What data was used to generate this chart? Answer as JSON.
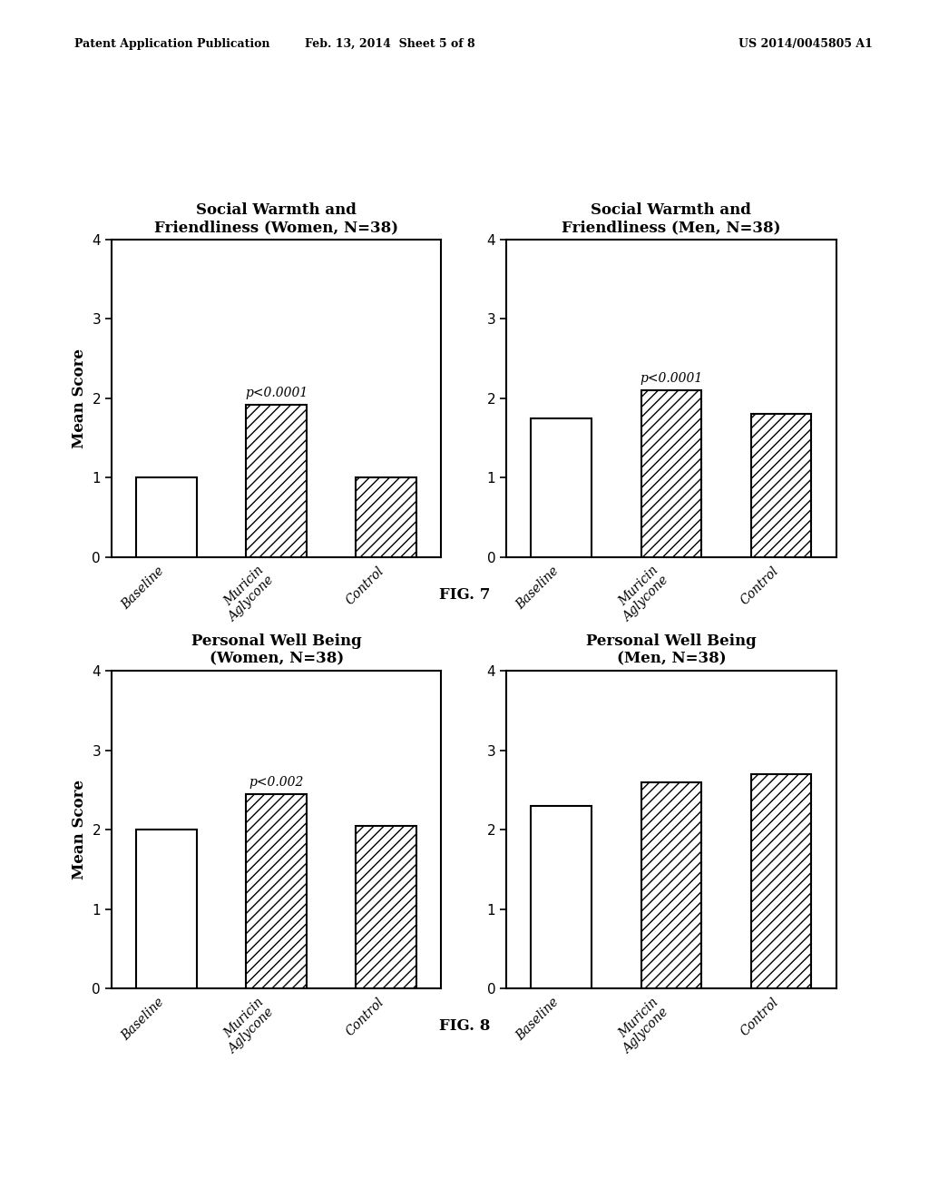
{
  "header_left": "Patent Application Publication",
  "header_mid": "Feb. 13, 2014  Sheet 5 of 8",
  "header_right": "US 2014/0045805 A1",
  "fig7": {
    "label": "FIG. 7",
    "left": {
      "title": "Social Warmth and\nFriendliness (Women, N=38)",
      "categories": [
        "Baseline",
        "Muricin\nAglycone",
        "Control"
      ],
      "values": [
        1.0,
        1.92,
        1.0
      ],
      "annotation": "p<0.0001",
      "annotation_bar": 1,
      "ylabel": "Mean Score",
      "ylim": [
        0,
        4
      ],
      "yticks": [
        0,
        1,
        2,
        3,
        4
      ]
    },
    "right": {
      "title": "Social Warmth and\nFriendliness (Men, N=38)",
      "categories": [
        "Baseline",
        "Muricin\nAglycone",
        "Control"
      ],
      "values": [
        1.75,
        2.1,
        1.8
      ],
      "annotation": "p<0.0001",
      "annotation_bar": 1,
      "ylabel": "Mean Score",
      "ylim": [
        0,
        4
      ],
      "yticks": [
        0,
        1,
        2,
        3,
        4
      ]
    }
  },
  "fig8": {
    "label": "FIG. 8",
    "left": {
      "title": "Personal Well Being\n(Women, N=38)",
      "categories": [
        "Baseline",
        "Muricin\nAglycone",
        "Control"
      ],
      "values": [
        2.0,
        2.45,
        2.05
      ],
      "annotation": "p<0.002",
      "annotation_bar": 1,
      "ylabel": "Mean Score",
      "ylim": [
        0,
        4
      ],
      "yticks": [
        0,
        1,
        2,
        3,
        4
      ]
    },
    "right": {
      "title": "Personal Well Being\n(Men, N=38)",
      "categories": [
        "Baseline",
        "Muricin\nAglycone",
        "Control"
      ],
      "values": [
        2.3,
        2.6,
        2.7
      ],
      "annotation": null,
      "annotation_bar": null,
      "ylabel": "Mean Score",
      "ylim": [
        0,
        4
      ],
      "yticks": [
        0,
        1,
        2,
        3,
        4
      ]
    }
  },
  "bar_colors": [
    "white",
    "white",
    "white"
  ],
  "hatch_patterns": [
    "",
    "///",
    "///"
  ],
  "background_color": "#ffffff"
}
